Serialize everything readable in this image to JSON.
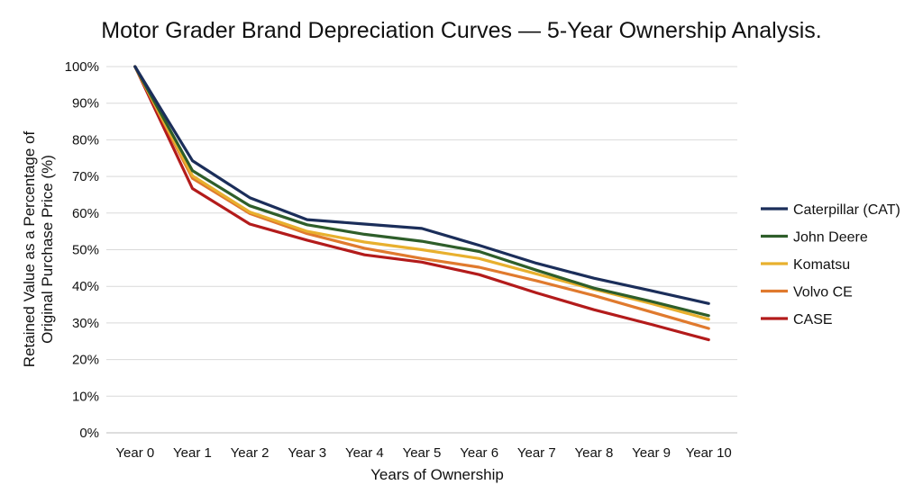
{
  "chart_data": {
    "type": "line",
    "title": "Motor Grader Brand Depreciation Curves — 5-Year Ownership Analysis.",
    "xlabel": "Years of Ownership",
    "ylabel_lines": [
      "Retained Value as a Percentage of",
      "Original Purchase Price (%)"
    ],
    "categories": [
      "Year 0",
      "Year 1",
      "Year 2",
      "Year 3",
      "Year 4",
      "Year 5",
      "Year 6",
      "Year 7",
      "Year 8",
      "Year 9",
      "Year 10"
    ],
    "ylim": [
      0,
      100
    ],
    "yticks": [
      "0%",
      "10%",
      "20%",
      "30%",
      "40%",
      "50%",
      "60%",
      "70%",
      "80%",
      "90%",
      "100%"
    ],
    "grid": "horizontal",
    "legend_position": "right",
    "series": [
      {
        "name": "Caterpillar (CAT)",
        "color": "#1b2e5a",
        "values": [
          100,
          74.3,
          64.2,
          58.2,
          57.0,
          55.8,
          51.2,
          46.3,
          42.2,
          38.8,
          35.3
        ]
      },
      {
        "name": "John Deere",
        "color": "#2e5e2a",
        "values": [
          100,
          71.6,
          62.0,
          56.8,
          54.2,
          52.3,
          49.5,
          44.4,
          39.5,
          35.9,
          32.0
        ]
      },
      {
        "name": "Komatsu",
        "color": "#e8b02e",
        "values": [
          100,
          70.2,
          60.3,
          55.0,
          52.1,
          50.0,
          47.6,
          43.4,
          39.2,
          35.3,
          31.0
        ]
      },
      {
        "name": "Volvo CE",
        "color": "#e07a2e",
        "values": [
          100,
          69.5,
          59.9,
          54.4,
          50.4,
          47.6,
          45.2,
          41.5,
          37.5,
          33.0,
          28.5
        ]
      },
      {
        "name": "CASE",
        "color": "#b31b1b",
        "values": [
          100,
          66.7,
          57.0,
          52.6,
          48.6,
          46.6,
          43.2,
          38.2,
          33.6,
          29.6,
          25.4
        ]
      }
    ]
  }
}
